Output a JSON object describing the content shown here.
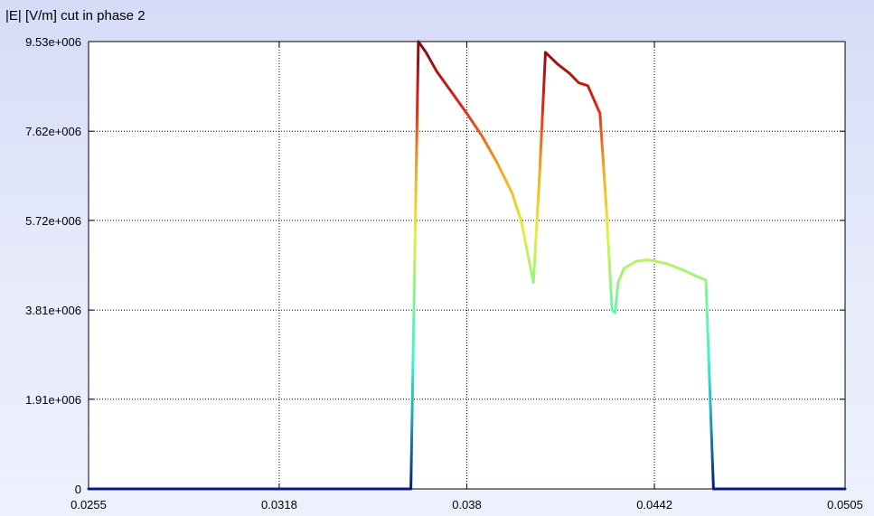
{
  "chart_data": {
    "type": "line",
    "title": "|E| [V/m] cut in phase 2",
    "xlabel": "",
    "ylabel": "",
    "xlim": [
      0.0255,
      0.0505
    ],
    "ylim": [
      0,
      9530000
    ],
    "xticks": [
      0.0255,
      0.0318,
      0.038,
      0.0442,
      0.0505
    ],
    "xtick_labels": [
      "0.0255",
      "0.0318",
      "0.038",
      "0.0442",
      "0.0505"
    ],
    "yticks": [
      0,
      1910000,
      3810000,
      5720000,
      7620000,
      9530000
    ],
    "ytick_labels": [
      "0",
      "1.91e+006",
      "3.81e+006",
      "5.72e+006",
      "7.62e+006",
      "9.53e+006"
    ],
    "grid": true,
    "legend": "none",
    "colormap": [
      "#0b1a7a",
      "#1e9aa8",
      "#3cf2d0",
      "#7cf59a",
      "#e6f03a",
      "#f5a81f",
      "#e0231a",
      "#7a0a14"
    ],
    "series": [
      {
        "x": [
          0.0255,
          0.03615,
          0.0364,
          0.03665,
          0.037,
          0.0375,
          0.038,
          0.0385,
          0.039,
          0.0395,
          0.0398,
          0.0402,
          0.0404,
          0.0406,
          0.041,
          0.0414,
          0.0417,
          0.042,
          0.0424,
          0.0426,
          0.0428,
          0.0429,
          0.043,
          0.0432,
          0.0436,
          0.044,
          0.0446,
          0.0452,
          0.0457,
          0.0459,
          0.04615,
          0.0505
        ],
        "y": [
          0,
          0,
          9530000,
          9300000,
          8900000,
          8450000,
          8000000,
          7520000,
          6950000,
          6300000,
          5700000,
          4400000,
          6650000,
          9300000,
          9050000,
          8850000,
          8650000,
          8590000,
          8000000,
          6100000,
          3810000,
          3750000,
          4400000,
          4700000,
          4850000,
          4880000,
          4800000,
          4650000,
          4500000,
          4450000,
          0,
          0
        ]
      }
    ]
  }
}
